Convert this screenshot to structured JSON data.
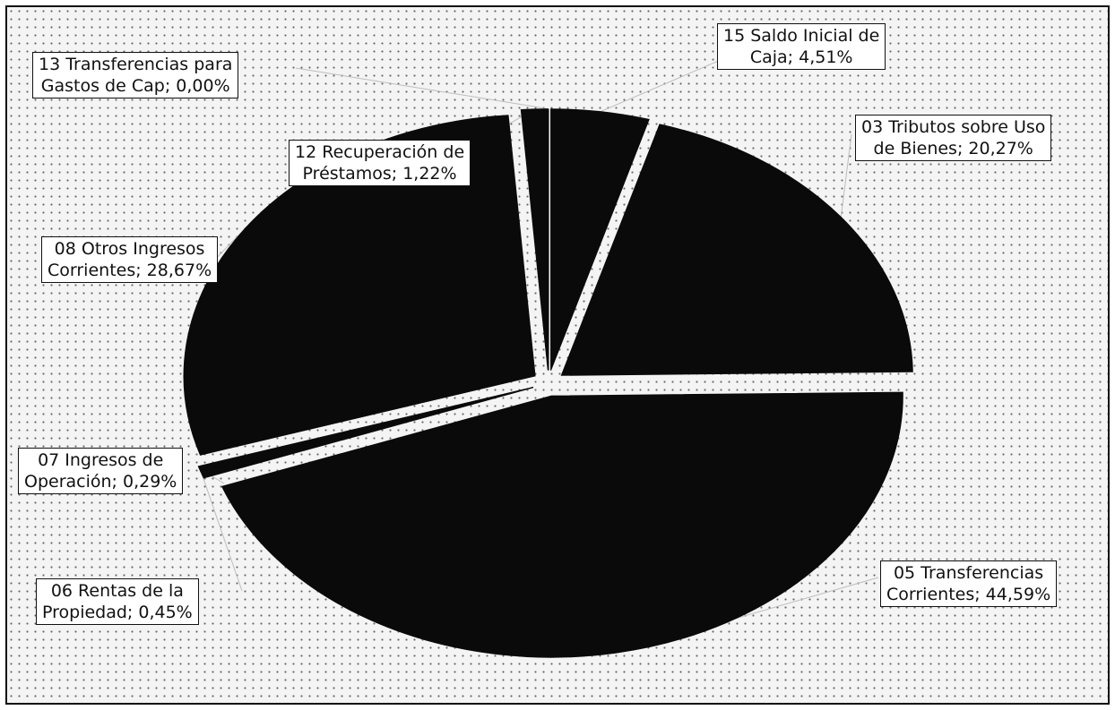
{
  "chart_data": {
    "type": "pie",
    "title": "",
    "slices": [
      {
        "name": "15 Saldo Inicial de Caja",
        "value": 4.51,
        "value_label": "4,51%",
        "line1": "15 Saldo Inicial de",
        "line2": "Caja; 4,51%"
      },
      {
        "name": "03 Tributos sobre Uso de Bienes",
        "value": 20.27,
        "value_label": "20,27%",
        "line1": "03 Tributos sobre Uso",
        "line2": "de Bienes; 20,27%"
      },
      {
        "name": "05 Transferencias Corrientes",
        "value": 44.59,
        "value_label": "44,59%",
        "line1": "05 Transferencias",
        "line2": "Corrientes; 44,59%"
      },
      {
        "name": "06 Rentas de la Propiedad",
        "value": 0.45,
        "value_label": "0,45%",
        "line1": "06 Rentas de la",
        "line2": "Propiedad; 0,45%"
      },
      {
        "name": "07 Ingresos de Operación",
        "value": 0.29,
        "value_label": "0,29%",
        "line1": "07 Ingresos de",
        "line2": "Operación; 0,29%"
      },
      {
        "name": "08 Otros Ingresos Corrientes",
        "value": 28.67,
        "value_label": "28,67%",
        "line1": "08 Otros Ingresos",
        "line2": "Corrientes; 28,67%"
      },
      {
        "name": "12 Recuperación de Préstamos",
        "value": 1.22,
        "value_label": "1,22%",
        "line1": "12 Recuperación de",
        "line2": "Préstamos; 1,22%"
      },
      {
        "name": "13 Transferencias para Gastos de Cap",
        "value": 0.0,
        "value_label": "0,00%",
        "line1": "13 Transferencias para",
        "line2": "Gastos de Cap; 0,00%"
      }
    ],
    "legend": "none",
    "colors": {
      "slice": "#0a0a0a",
      "background_dot": "#6a6a6a",
      "label_bg": "#ffffff"
    }
  }
}
